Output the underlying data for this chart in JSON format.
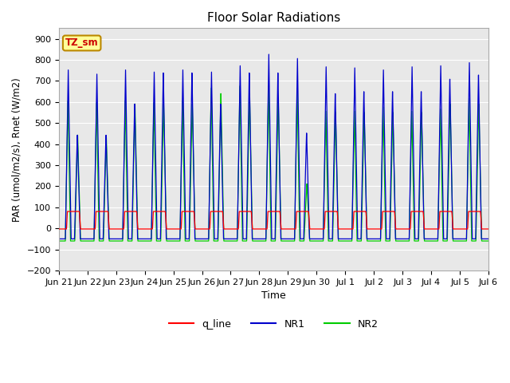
{
  "title": "Floor Solar Radiations",
  "xlabel": "Time",
  "ylabel": "PAR (umol/m2/s), Rnet (W/m2)",
  "ylim": [
    -200,
    950
  ],
  "yticks": [
    -200,
    -100,
    0,
    100,
    200,
    300,
    400,
    500,
    600,
    700,
    800,
    900
  ],
  "bg_color": "#e8e8e8",
  "line_colors": {
    "q_line": "#ff0000",
    "NR1": "#0000cc",
    "NR2": "#00cc00"
  },
  "tz_label": "TZ_sm",
  "n_days": 15,
  "start_day": 21,
  "points_per_day": 288,
  "night_NR1": -50,
  "night_NR2": -60,
  "night_q": -3,
  "day_q": 80,
  "day_peaks_NR1": [
    760,
    740,
    760,
    750,
    760,
    750,
    780,
    835,
    815,
    775,
    770,
    760,
    775,
    780,
    795
  ],
  "day_peaks_NR2": [
    610,
    600,
    610,
    600,
    610,
    670,
    680,
    680,
    670,
    560,
    560,
    580,
    560,
    570,
    620
  ],
  "day_peaks_NR1_pm": [
    450,
    450,
    600,
    750,
    750,
    600,
    750,
    750,
    460,
    650,
    660,
    660,
    660,
    720,
    740
  ],
  "day_peaks_NR2_pm": [
    450,
    440,
    600,
    600,
    600,
    650,
    650,
    630,
    215,
    560,
    560,
    560,
    560,
    600,
    600
  ],
  "x_tick_labels": [
    "Jun 21",
    "Jun 22",
    "Jun 23",
    "Jun 24",
    "Jun 25",
    "Jun 26",
    "Jun 27",
    "Jun 28",
    "Jun 29",
    "Jun 30",
    "Jul 1",
    "Jul 2",
    "Jul 3",
    "Jul 4",
    "Jul 5",
    "Jul 6"
  ]
}
